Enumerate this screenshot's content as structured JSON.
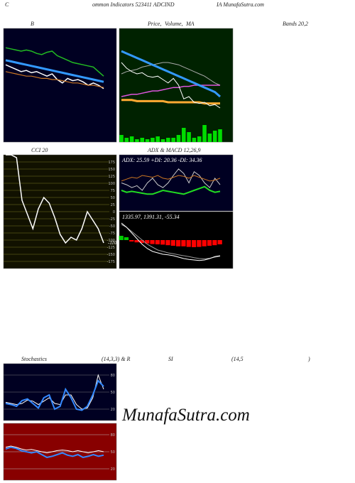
{
  "texts": [
    "C",
    "ommon  Indicators 523411 ADCIND",
    "IA MunafaSutra.com",
    "B",
    "Price,",
    "Volume,",
    "MA",
    "Bands 20,2",
    "CCI 20",
    "ADX  & MACD 12,26,9",
    "Stochastics",
    "(14,3,3) & R",
    "SI",
    "(14,5",
    ")",
    "MunafaSutra.com"
  ],
  "chart_data": [
    {
      "type": "line",
      "background": "#000022",
      "ylim": [
        0,
        100
      ],
      "series": [
        {
          "color": "#22bb22",
          "width": 1.5,
          "values": [
            83,
            82,
            81,
            80,
            81,
            80,
            78,
            77,
            79,
            80,
            76,
            74,
            72,
            70,
            69,
            68,
            67,
            66,
            62,
            58
          ]
        },
        {
          "color": "#3399ff",
          "width": 3,
          "values": [
            72,
            71,
            70,
            69,
            68,
            67,
            66,
            65,
            64,
            63,
            62,
            61,
            60,
            59,
            58,
            57,
            56,
            55,
            54,
            53
          ]
        },
        {
          "color": "#ffffff",
          "width": 1.5,
          "values": [
            68,
            66,
            64,
            62,
            63,
            61,
            62,
            60,
            58,
            60,
            55,
            52,
            56,
            54,
            55,
            53,
            50,
            52,
            50,
            47
          ]
        },
        {
          "color": "#cc7722",
          "width": 1.2,
          "values": [
            62,
            61,
            60,
            59,
            58,
            58,
            57,
            56,
            56,
            55,
            55,
            54,
            53,
            52,
            52,
            51,
            50,
            50,
            49,
            48
          ]
        }
      ]
    },
    {
      "type": "line",
      "background": "#002200",
      "ylim": [
        0,
        100
      ],
      "volume": [
        5,
        3,
        4,
        2,
        3,
        2,
        3,
        4,
        2,
        3,
        3,
        5,
        10,
        7,
        3,
        4,
        12,
        6,
        8,
        9
      ],
      "volume_color": "#00dd00",
      "volume_lim": [
        0,
        15
      ],
      "series": [
        {
          "color": "#aaaaaa",
          "width": 1,
          "values": [
            60,
            62,
            63,
            64,
            66,
            67,
            68,
            69,
            70,
            70,
            69,
            68,
            66,
            64,
            62,
            60,
            58,
            55,
            52,
            50
          ]
        },
        {
          "color": "#dd55dd",
          "width": 1.5,
          "values": [
            40,
            41,
            42,
            42,
            43,
            44,
            45,
            45,
            46,
            47,
            48,
            48,
            49,
            49,
            50,
            50,
            50,
            50,
            50,
            50
          ]
        },
        {
          "color": "#ffaa33",
          "width": 3,
          "values": [
            37,
            37,
            37,
            36,
            36,
            36,
            36,
            36,
            36,
            35,
            35,
            35,
            35,
            35,
            35,
            35,
            34,
            34,
            34,
            34
          ]
        },
        {
          "color": "#3399ff",
          "width": 3,
          "values": [
            80,
            78,
            76,
            74,
            72,
            70,
            68,
            66,
            64,
            62,
            60,
            58,
            56,
            54,
            52,
            50,
            48,
            46,
            44,
            40
          ]
        },
        {
          "color": "#ffffff",
          "width": 1,
          "values": [
            70,
            65,
            62,
            60,
            61,
            58,
            57,
            58,
            55,
            52,
            56,
            50,
            38,
            40,
            35,
            34,
            35,
            32,
            33,
            30
          ]
        }
      ]
    },
    {
      "type": "line",
      "background": "#111100",
      "grid_color": "#777722",
      "ylim": [
        -200,
        200
      ],
      "yticks": [
        175,
        150,
        125,
        100,
        75,
        50,
        25,
        0,
        -25,
        -50,
        -75,
        -100,
        -125,
        -150,
        -175
      ],
      "series": [
        {
          "color": "#ffffff",
          "width": 1.5,
          "values": [
            200,
            200,
            190,
            40,
            -10,
            -60,
            10,
            50,
            30,
            -20,
            -80,
            -110,
            -90,
            -100,
            -60,
            0,
            -30,
            -60,
            -110
          ]
        }
      ]
    },
    {
      "type": "line",
      "background": "#000022",
      "ylim": [
        0,
        60
      ],
      "annotation": "ADX: 25.59 +DI: 20.36 -DI: 34.36",
      "series": [
        {
          "color": "#cccccc",
          "width": 1,
          "values": [
            30,
            28,
            25,
            27,
            22,
            30,
            35,
            28,
            25,
            30,
            38,
            45,
            40,
            30,
            42,
            38,
            30,
            25,
            35,
            28
          ]
        },
        {
          "color": "#cc7722",
          "width": 1,
          "values": [
            32,
            34,
            36,
            35,
            38,
            37,
            36,
            38,
            35,
            34,
            36,
            38,
            37,
            35,
            38,
            36,
            34,
            32,
            33,
            35
          ]
        },
        {
          "color": "#22dd22",
          "width": 2,
          "values": [
            22,
            20,
            21,
            20,
            19,
            18,
            18,
            20,
            22,
            21,
            20,
            19,
            18,
            20,
            22,
            24,
            26,
            22,
            20,
            21
          ]
        }
      ]
    },
    {
      "type": "line",
      "background": "#000000",
      "ylim": [
        -100,
        100
      ],
      "annotation": "1335.97,  1391.31,  -55.34",
      "histogram": [
        15,
        10,
        -5,
        -8,
        -10,
        -12,
        -14,
        -15,
        -16,
        -18,
        -20,
        -22,
        -22,
        -24,
        -25,
        -24,
        -22,
        -20,
        -18,
        -15
      ],
      "histogram_colors": [
        "#00cc00",
        "#ff0000"
      ],
      "series": [
        {
          "color": "#999999",
          "width": 1,
          "values": [
            55,
            45,
            30,
            15,
            0,
            -15,
            -25,
            -35,
            -40,
            -45,
            -48,
            -52,
            -55,
            -58,
            -62,
            -65,
            -66,
            -64,
            -60,
            -57
          ]
        },
        {
          "color": "#ffffff",
          "width": 1,
          "values": [
            60,
            45,
            25,
            5,
            -15,
            -30,
            -40,
            -45,
            -50,
            -52,
            -55,
            -60,
            -65,
            -68,
            -70,
            -72,
            -70,
            -65,
            -58,
            -55
          ]
        }
      ]
    },
    {
      "type": "line",
      "background": "#000022",
      "grid_color": "#777777",
      "ylim": [
        0,
        100
      ],
      "yticks": [
        80,
        50,
        20
      ],
      "series": [
        {
          "color": "#ffffff",
          "width": 1,
          "values": [
            32,
            30,
            28,
            30,
            36,
            34,
            28,
            34,
            40,
            30,
            28,
            45,
            45,
            28,
            20,
            22,
            40,
            80,
            55
          ]
        },
        {
          "color": "#3388ff",
          "width": 2,
          "values": [
            30,
            28,
            25,
            35,
            38,
            30,
            22,
            40,
            45,
            20,
            25,
            55,
            40,
            20,
            18,
            25,
            45,
            70,
            60
          ]
        }
      ]
    },
    {
      "type": "line",
      "background": "#880000",
      "grid_color": "#bbbbbb",
      "ylim": [
        0,
        100
      ],
      "yticks": [
        80,
        50,
        20
      ],
      "series": [
        {
          "color": "#ffffff",
          "width": 1,
          "values": [
            58,
            60,
            58,
            55,
            53,
            54,
            52,
            50,
            48,
            50,
            52,
            53,
            52,
            50,
            52,
            50,
            48,
            50,
            52,
            50
          ]
        },
        {
          "color": "#3388ff",
          "width": 2,
          "values": [
            55,
            58,
            56,
            52,
            50,
            48,
            50,
            45,
            40,
            42,
            45,
            48,
            44,
            42,
            45,
            40,
            42,
            45,
            42,
            44
          ]
        }
      ]
    }
  ]
}
